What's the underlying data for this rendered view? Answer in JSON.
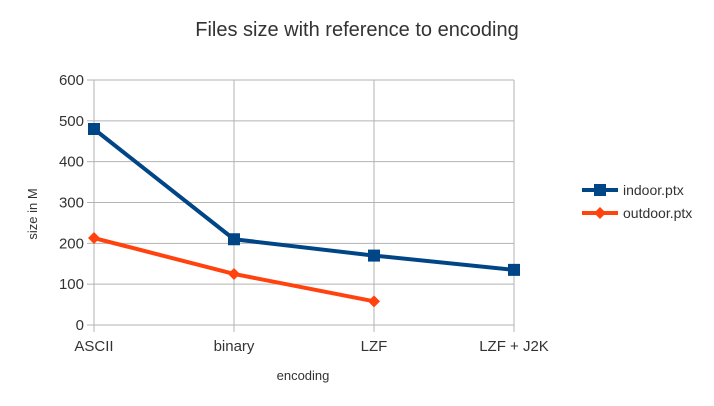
{
  "chart_data": {
    "type": "line",
    "title": "Files size with reference to encoding",
    "xlabel": "encoding",
    "ylabel": "size in M",
    "categories": [
      "ASCII",
      "binary",
      "LZF",
      "LZF + J2K"
    ],
    "ylim": [
      0,
      600
    ],
    "yticks": [
      0,
      100,
      200,
      300,
      400,
      500,
      600
    ],
    "grid": true,
    "legend_position": "right",
    "series": [
      {
        "name": "indoor.ptx",
        "values": [
          480,
          210,
          170,
          135
        ],
        "color": "#004586",
        "marker": "square"
      },
      {
        "name": "outdoor.ptx",
        "values": [
          213,
          125,
          58,
          null
        ],
        "color": "#ff420e",
        "marker": "diamond"
      }
    ]
  }
}
